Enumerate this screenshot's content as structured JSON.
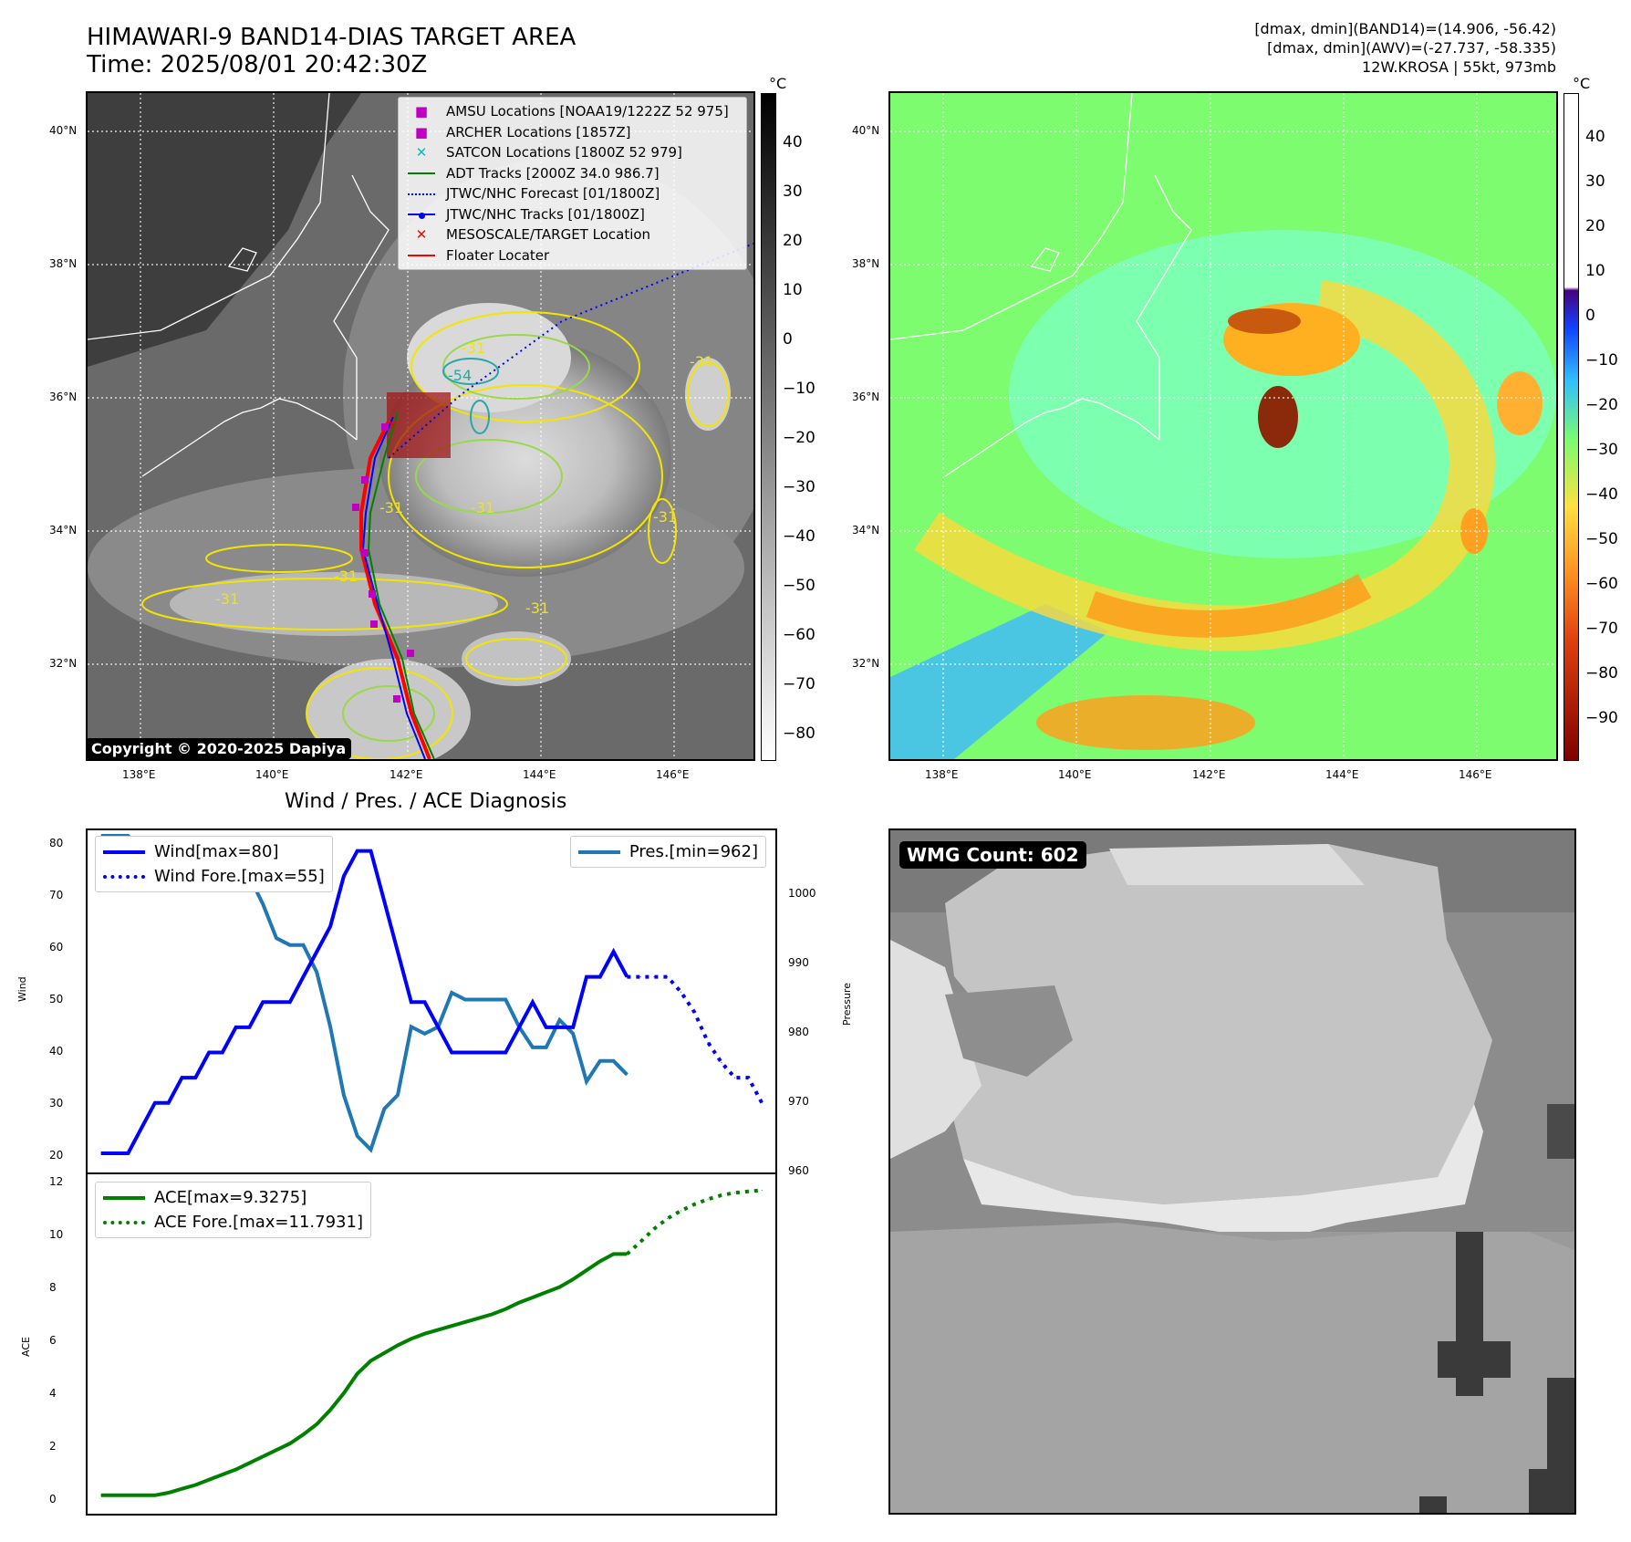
{
  "header": {
    "title_line1": "HIMAWARI-9 BAND14-DIAS TARGET AREA",
    "title_line2": "Time: 2025/08/01 20:42:30Z",
    "info_line1": "[dmax, dmin](BAND14)=(14.906, -56.42)",
    "info_line2": "[dmax, dmin](AWV)=(-27.737, -58.335)",
    "info_line3": "12W.KROSA | 55kt, 973mb"
  },
  "map_left": {
    "lat_labels": [
      "40°N",
      "38°N",
      "36°N",
      "34°N",
      "32°N"
    ],
    "lon_labels": [
      "138°E",
      "140°E",
      "142°E",
      "144°E",
      "146°E"
    ],
    "colorbar_unit": "°C",
    "colorbar_ticks": [
      "40",
      "30",
      "20",
      "10",
      "0",
      "−10",
      "−20",
      "−30",
      "−40",
      "−50",
      "−60",
      "−70",
      "−80"
    ],
    "contour_labels": [
      "-31",
      "-54",
      "-31",
      "-31",
      "-31",
      "-31",
      "-31",
      "-31",
      "-31"
    ],
    "copyright": "Copyright © 2020-2025 Dapiya",
    "legend": [
      {
        "label": "AMSU Locations [NOAA19/1222Z 52 975]",
        "symbol": "square",
        "color": "#c000c0"
      },
      {
        "label": "ARCHER Locations [1857Z]",
        "symbol": "square",
        "color": "#c000c0"
      },
      {
        "label": "SATCON Locations [1800Z 52 979]",
        "symbol": "x",
        "color": "#00bfbf"
      },
      {
        "label": "ADT Tracks [2000Z 34.0 986.7]",
        "symbol": "line",
        "color": "#008000"
      },
      {
        "label": "JTWC/NHC Forecast [01/1800Z]",
        "symbol": "dotted",
        "color": "#0000ff"
      },
      {
        "label": "JTWC/NHC Tracks [01/1800Z]",
        "symbol": "line-dot",
        "color": "#0000ff"
      },
      {
        "label": "MESOSCALE/TARGET Location",
        "symbol": "x",
        "color": "#ff0000"
      },
      {
        "label": "Floater Locater",
        "symbol": "line",
        "color": "#ff0000"
      }
    ]
  },
  "map_right": {
    "lat_labels": [
      "40°N",
      "38°N",
      "36°N",
      "34°N",
      "32°N"
    ],
    "lon_labels": [
      "138°E",
      "140°E",
      "142°E",
      "144°E",
      "146°E"
    ],
    "colorbar_unit": "°C",
    "colorbar_ticks": [
      "40",
      "30",
      "20",
      "10",
      "0",
      "−10",
      "−20",
      "−30",
      "−40",
      "−50",
      "−60",
      "−70",
      "−80",
      "−90"
    ]
  },
  "diagnosis": {
    "title": "Wind / Pres. / ACE Diagnosis",
    "wind_ylabel": "Wind",
    "pres_ylabel": "Pressure",
    "ace_ylabel": "ACE",
    "wind_ticks": [
      "80",
      "70",
      "60",
      "50",
      "40",
      "30",
      "20"
    ],
    "pres_ticks": [
      "1000",
      "990",
      "980",
      "970",
      "960"
    ],
    "ace_ticks": [
      "12",
      "10",
      "8",
      "6",
      "4",
      "2",
      "0"
    ],
    "legend_wind": "Wind[max=80]",
    "legend_wind_fore": "Wind Fore.[max=55]",
    "legend_pres": "Pres.[min=962]",
    "legend_ace": "ACE[max=9.3275]",
    "legend_ace_fore": "ACE Fore.[max=11.7931]"
  },
  "wmg": {
    "label": "WMG Count: 602"
  },
  "chart_data": [
    {
      "type": "line",
      "title": "Wind / Pres. / ACE Diagnosis",
      "ylabel": "Wind",
      "ylim": [
        18,
        83
      ],
      "series": [
        {
          "name": "Wind[max=80]",
          "color": "#0000ff",
          "style": "solid",
          "x": [
            0,
            1,
            2,
            3,
            4,
            5,
            6,
            7,
            8,
            9,
            10,
            11,
            12,
            13,
            14,
            15,
            16,
            17,
            18,
            19,
            20,
            21,
            22,
            23,
            24,
            25,
            26,
            27,
            28,
            29,
            30,
            31,
            32,
            33,
            34,
            35,
            36,
            37,
            38,
            39
          ],
          "values": [
            20,
            20,
            20,
            25,
            30,
            30,
            35,
            35,
            40,
            40,
            45,
            45,
            50,
            50,
            50,
            55,
            60,
            65,
            75,
            80,
            80,
            70,
            60,
            50,
            50,
            45,
            40,
            40,
            40,
            40,
            40,
            45,
            50,
            45,
            45,
            45,
            55,
            55,
            60,
            55
          ]
        },
        {
          "name": "Wind Fore.[max=55]",
          "color": "#0000ff",
          "style": "dotted",
          "x": [
            39,
            40,
            41,
            42,
            43,
            44,
            45,
            46,
            47,
            48,
            49
          ],
          "values": [
            55,
            55,
            55,
            55,
            52,
            48,
            42,
            38,
            35,
            35,
            30
          ]
        }
      ]
    },
    {
      "type": "line",
      "ylabel": "Pressure",
      "ylim": [
        960,
        1008
      ],
      "series": [
        {
          "name": "Pres.[min=962]",
          "color": "#1f77b4",
          "style": "solid",
          "x": [
            0,
            1,
            2,
            3,
            4,
            5,
            6,
            7,
            8,
            9,
            10,
            11,
            12,
            13,
            14,
            15,
            16,
            17,
            18,
            19,
            20,
            21,
            22,
            23,
            24,
            25,
            26,
            27,
            28,
            29,
            30,
            31,
            32,
            33,
            34,
            35,
            36,
            37,
            38,
            39
          ],
          "values": [
            1008,
            1008,
            1008,
            1006,
            1006,
            1005,
            1005,
            1003,
            1003,
            1002,
            1002,
            1002,
            998,
            993,
            992,
            992,
            988,
            980,
            970,
            964,
            962,
            968,
            970,
            980,
            979,
            980,
            985,
            984,
            984,
            984,
            984,
            980,
            977,
            977,
            981,
            979,
            972,
            975,
            975,
            973
          ]
        }
      ]
    },
    {
      "type": "line",
      "ylabel": "ACE",
      "ylim": [
        -0.5,
        12.2
      ],
      "series": [
        {
          "name": "ACE[max=9.3275]",
          "color": "#008000",
          "style": "solid",
          "x": [
            0,
            1,
            2,
            3,
            4,
            5,
            6,
            7,
            8,
            9,
            10,
            11,
            12,
            13,
            14,
            15,
            16,
            17,
            18,
            19,
            20,
            21,
            22,
            23,
            24,
            25,
            26,
            27,
            28,
            29,
            30,
            31,
            32,
            33,
            34,
            35,
            36,
            37,
            38,
            39
          ],
          "values": [
            0,
            0,
            0,
            0,
            0,
            0.1,
            0.25,
            0.4,
            0.6,
            0.8,
            1.0,
            1.25,
            1.5,
            1.75,
            2.0,
            2.35,
            2.75,
            3.3,
            3.95,
            4.7,
            5.2,
            5.5,
            5.8,
            6.05,
            6.25,
            6.4,
            6.55,
            6.7,
            6.85,
            7.0,
            7.2,
            7.45,
            7.65,
            7.85,
            8.05,
            8.35,
            8.7,
            9.05,
            9.3275,
            9.3275
          ]
        },
        {
          "name": "ACE Fore.[max=11.7931]",
          "color": "#008000",
          "style": "dotted",
          "x": [
            39,
            40,
            41,
            42,
            43,
            44,
            45,
            46,
            47,
            48,
            49
          ],
          "values": [
            9.3275,
            9.8,
            10.3,
            10.7,
            11.0,
            11.25,
            11.45,
            11.6,
            11.7,
            11.75,
            11.7931
          ]
        }
      ]
    }
  ]
}
